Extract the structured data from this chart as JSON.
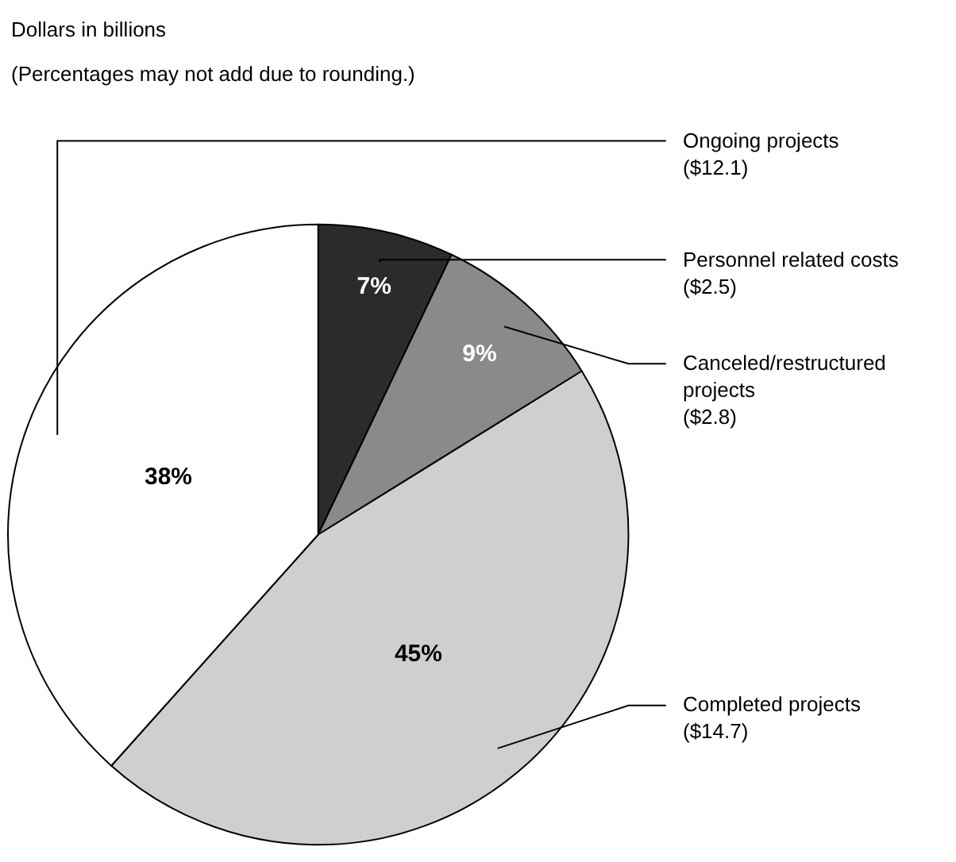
{
  "chart_data": {
    "type": "pie",
    "title": "Dollars in billions",
    "subtitle": "(Percentages may not add due to rounding.)",
    "categories": [
      "Personnel related costs\n($2.5)",
      "Canceled/restructured\nprojects\n($2.8)",
      "Completed projects\n($14.7)",
      "Ongoing projects\n($12.1)"
    ],
    "values": [
      7,
      9,
      45,
      38
    ],
    "value_labels": [
      "7%",
      "9%",
      "45%",
      "38%"
    ],
    "colors": [
      "#2b2b2b",
      "#8a8a8a",
      "#cfcfcf",
      "#ffffff"
    ],
    "legend": false
  }
}
